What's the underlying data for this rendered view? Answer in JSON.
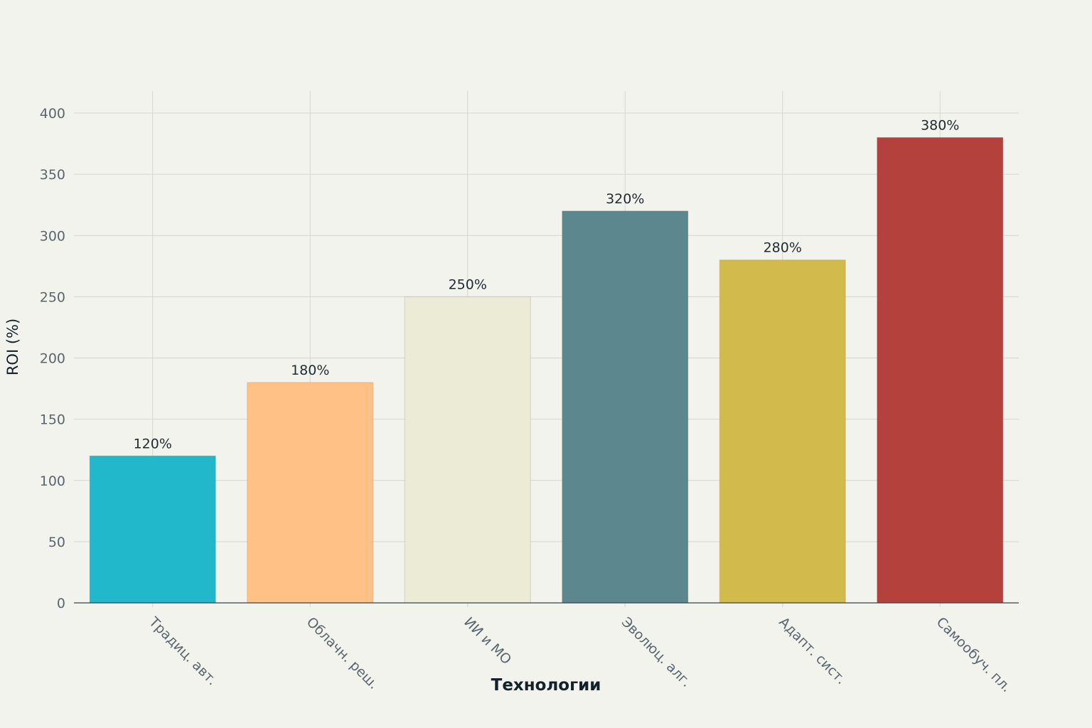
{
  "chart_data": {
    "type": "bar",
    "categories": [
      "Традиц. авт.",
      "Облачн. реш.",
      "ИИ и МО",
      "Эволюц. алг.",
      "Адапт. сист.",
      "Самообуч. пл."
    ],
    "values": [
      120,
      180,
      250,
      320,
      280,
      380
    ],
    "data_labels": [
      "120%",
      "180%",
      "250%",
      "320%",
      "280%",
      "380%"
    ],
    "colors": [
      "#21b8cc",
      "#ffc185",
      "#ecebd5",
      "#5d878f",
      "#d2ba4c",
      "#b4413c"
    ],
    "xlabel": "Технологии",
    "ylabel": "ROI (%)",
    "ylim": [
      0,
      400
    ],
    "yticks": [
      "0",
      "50",
      "100",
      "150",
      "200",
      "250",
      "300",
      "350",
      "400"
    ],
    "grid": true,
    "x_tick_rotation": 45
  }
}
